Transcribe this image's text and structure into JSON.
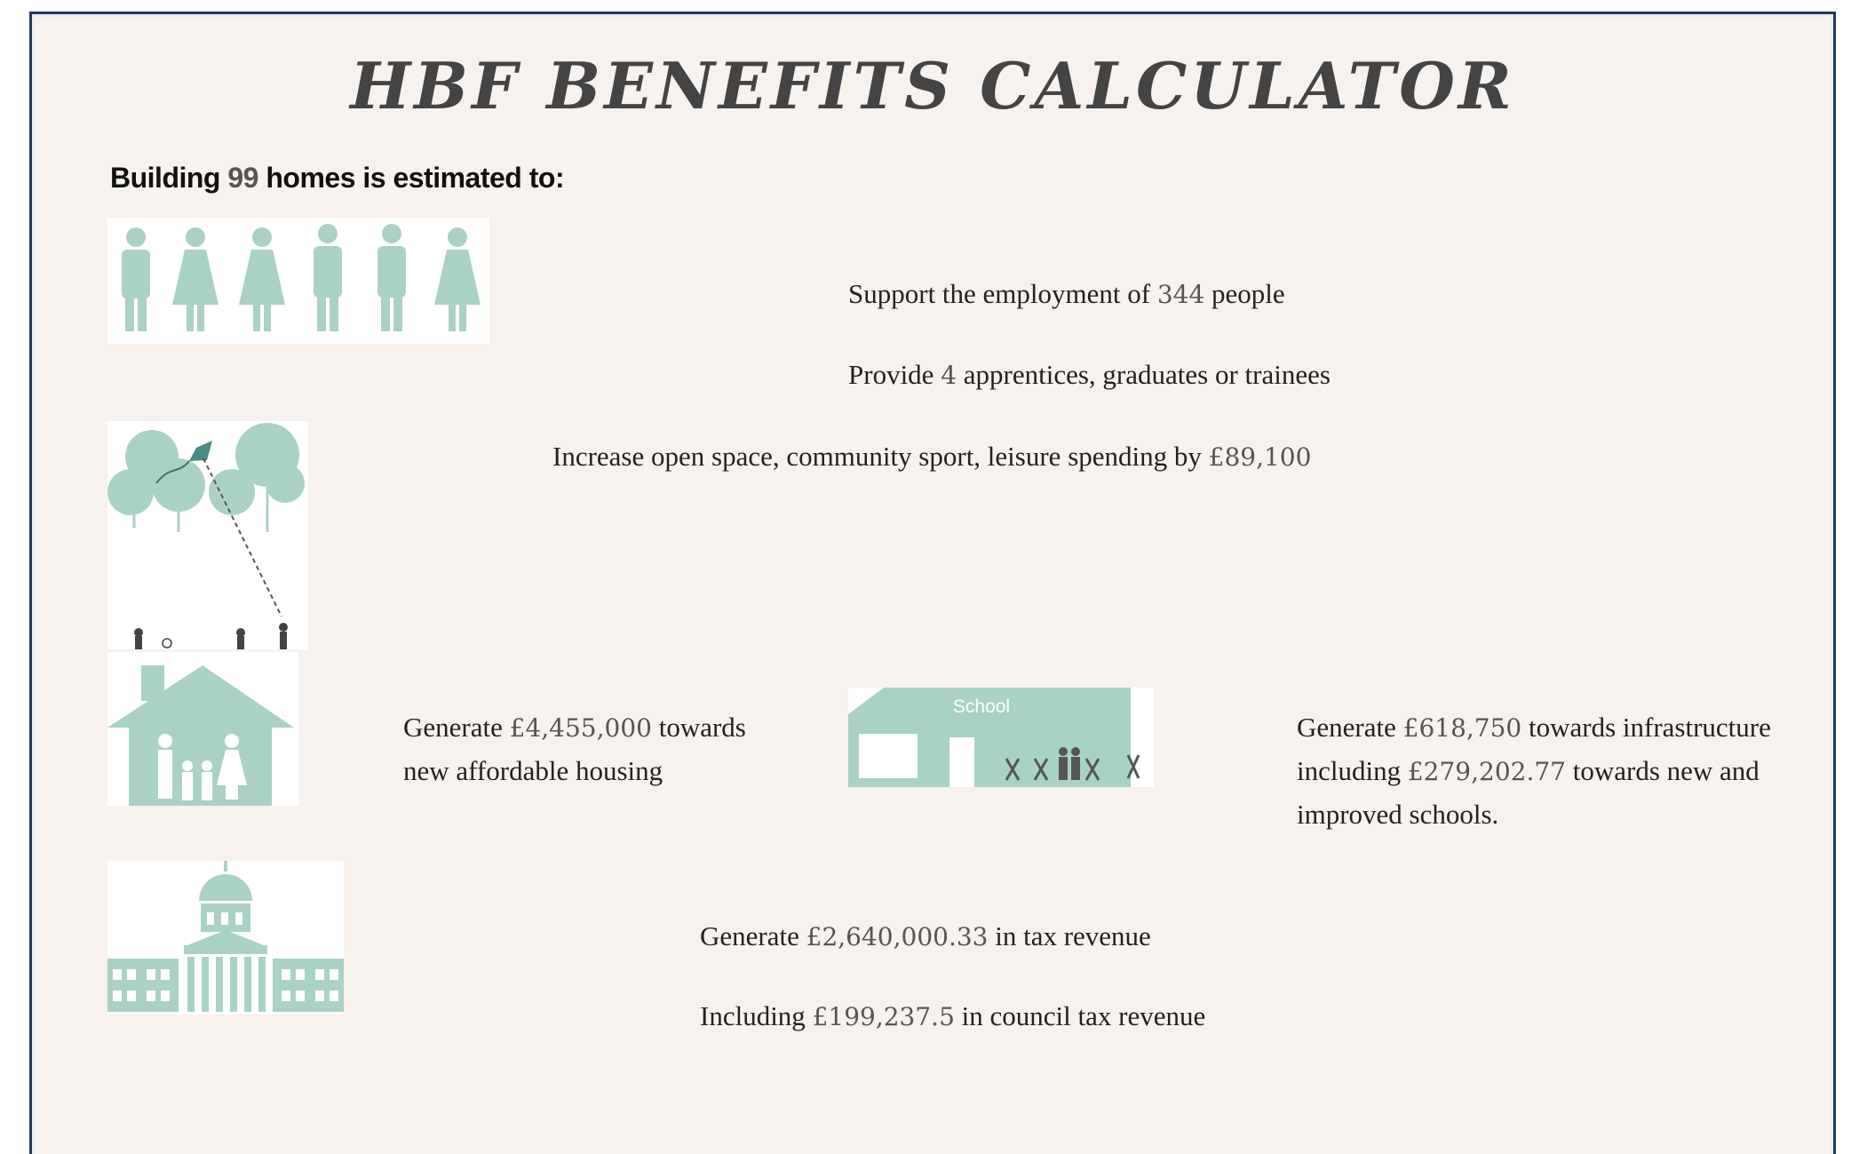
{
  "header": {
    "title": "HBF BENEFITS CALCULATOR"
  },
  "intro": {
    "prefix": "Building",
    "homes": "99",
    "suffix": "homes is estimated to:"
  },
  "employment": {
    "prefix": "Support the employment of",
    "value": "344",
    "suffix": "people"
  },
  "apprentices": {
    "prefix": "Provide",
    "value": "4",
    "suffix": "apprentices, graduates or trainees"
  },
  "open_space": {
    "prefix": "Increase open space, community sport, leisure spending by",
    "value": "£89,100"
  },
  "affordable_housing": {
    "prefix": "Generate",
    "value": "£4,455,000",
    "suffix": "towards new affordable housing"
  },
  "school_label": "School",
  "infrastructure": {
    "prefix": "Generate",
    "value": "£618,750",
    "middle": "towards infrastructure including",
    "schools_value": "£279,202.77",
    "suffix": "towards new and improved schools."
  },
  "tax": {
    "prefix": "Generate",
    "value": "£2,640,000.33",
    "suffix": "in tax revenue"
  },
  "council_tax": {
    "prefix": "Including",
    "value": "£199,237.5",
    "suffix": "in council tax revenue"
  }
}
